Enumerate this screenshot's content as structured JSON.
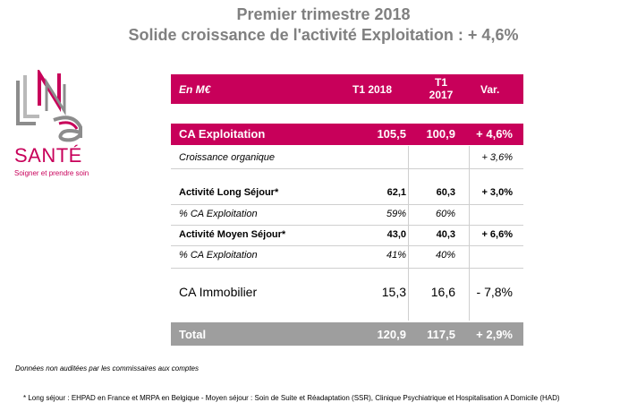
{
  "title_line1": "Premier trimestre 2018",
  "title_line2": "Solide croissance de l'activité Exploitation : + 4,6%",
  "logo": {
    "name": "SANTÉ",
    "tagline": "Soigner et prendre soin",
    "colors": {
      "magenta": "#c8005a",
      "gray": "#8c8c8c",
      "light": "#b9b9b9"
    }
  },
  "table": {
    "header": {
      "label": "En M€",
      "col1": "T1 2018",
      "col2_line1": "T1",
      "col2_line2": "2017",
      "col3": "Var."
    },
    "rows": [
      {
        "label": "CA Exploitation",
        "v1": "105,5",
        "v2": "100,9",
        "var": "+ 4,6%"
      },
      {
        "label": "Croissance organique",
        "v1": "",
        "v2": "",
        "var": "+ 3,6%"
      },
      {
        "label": "Activité Long Séjour*",
        "v1": "62,1",
        "v2": "60,3",
        "var": "+ 3,0%"
      },
      {
        "label": "% CA Exploitation",
        "v1": "59%",
        "v2": "60%",
        "var": ""
      },
      {
        "label": "Activité Moyen Séjour*",
        "v1": "43,0",
        "v2": "40,3",
        "var": "+ 6,6%"
      },
      {
        "label": "% CA Exploitation",
        "v1": "41%",
        "v2": "40%",
        "var": ""
      },
      {
        "label": "CA Immobilier",
        "v1": "15,3",
        "v2": "16,6",
        "var": "- 7,8%"
      },
      {
        "label": "Total",
        "v1": "120,9",
        "v2": "117,5",
        "var": "+ 2,9%"
      }
    ],
    "colors": {
      "header": "#c8005a",
      "total": "#9e9e9e"
    }
  },
  "footnote_audit": "Données  non auditées par les commissaires aux comptes",
  "footnote_definition": "*  Long séjour : EHPAD en France et MRPA en Belgique - Moyen séjour : Soin de Suite et Réadaptation (SSR), Clinique Psychiatrique et Hospitalisation A Domicile (HAD)"
}
